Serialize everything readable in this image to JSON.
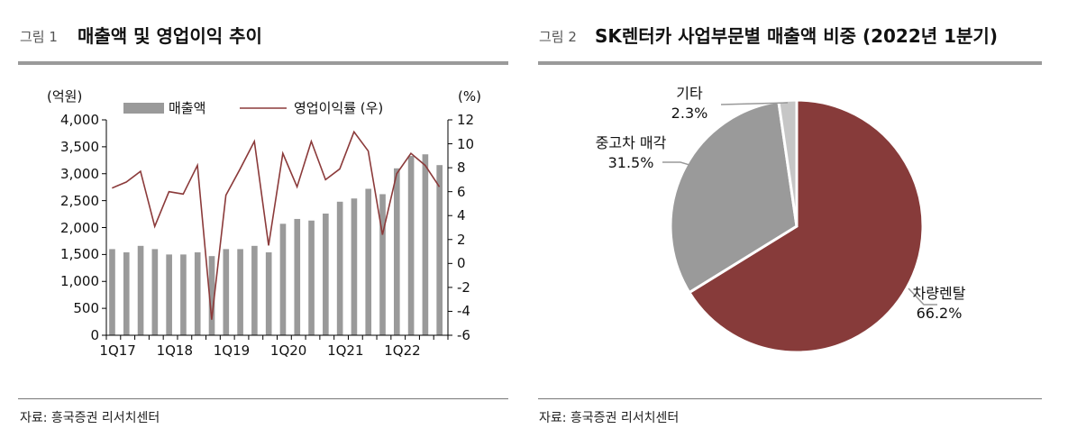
{
  "figure1": {
    "fig_label": "그림 1",
    "title": "매출액 및 영업이익 추이",
    "source": "자료: 흥국증권 리서치센터"
  },
  "figure2": {
    "fig_label": "그림 2",
    "title": "SK렌터카 사업부문별 매출액 비중 (2022년 1분기)",
    "source": "자료: 흥국증권 리서치센터"
  },
  "chart_data": [
    {
      "type": "bar+line",
      "categories": [
        "1Q17",
        "2Q17",
        "3Q17",
        "4Q17",
        "1Q18",
        "2Q18",
        "3Q18",
        "4Q18",
        "1Q19",
        "2Q19",
        "3Q19",
        "4Q19",
        "1Q20",
        "2Q20",
        "3Q20",
        "4Q20",
        "1Q21",
        "2Q21",
        "3Q21",
        "4Q21",
        "1Q22",
        "2Q22",
        "3Q22",
        "4Q22"
      ],
      "tick_labels": [
        "1Q17",
        "1Q18",
        "1Q19",
        "1Q20",
        "1Q21",
        "1Q22"
      ],
      "ylabel": "(억원)",
      "y2label": "(%)",
      "ylim": [
        0,
        4000
      ],
      "yticks": [
        "0",
        "500",
        "1,000",
        "1,500",
        "2,000",
        "2,500",
        "3,000",
        "3,500",
        "4,000"
      ],
      "y2lim": [
        -6,
        12
      ],
      "y2ticks": [
        "-6",
        "-4",
        "-2",
        "0",
        "2",
        "4",
        "6",
        "8",
        "10",
        "12"
      ],
      "legend_placement": "top",
      "series": [
        {
          "name": "매출액",
          "type": "bar",
          "axis": "left",
          "color": "#9a9a9a",
          "values": [
            1600,
            1540,
            1660,
            1600,
            1500,
            1500,
            1540,
            1470,
            1600,
            1600,
            1660,
            1540,
            2070,
            2160,
            2130,
            2260,
            2480,
            2540,
            2720,
            2620,
            3100,
            3330,
            3360,
            3160
          ]
        },
        {
          "name": "영업이익률 (우)",
          "type": "line",
          "axis": "right",
          "color": "#8b3a3a",
          "values": [
            6.3,
            6.8,
            7.7,
            3.1,
            6.0,
            5.8,
            8.2,
            -4.7,
            5.7,
            7.9,
            10.2,
            1.5,
            9.2,
            6.4,
            10.2,
            7.0,
            7.9,
            11.0,
            9.4,
            2.4,
            7.5,
            9.2,
            8.2,
            6.4
          ]
        }
      ]
    },
    {
      "type": "pie",
      "slices": [
        {
          "label": "차량렌탈",
          "value": 66.2,
          "text": "66.2%",
          "color": "#873b3a"
        },
        {
          "label": "중고차 매각",
          "value": 31.5,
          "text": "31.5%",
          "color": "#9a9a9a"
        },
        {
          "label": "기타",
          "value": 2.3,
          "text": "2.3%",
          "color": "#c6c6c6"
        }
      ]
    }
  ]
}
